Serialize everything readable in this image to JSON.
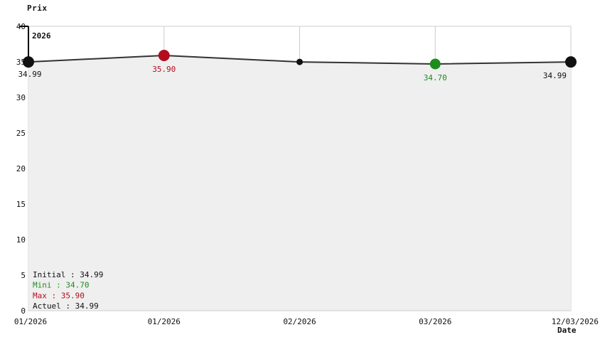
{
  "chart_data": {
    "type": "line",
    "title": "Prix",
    "ylabel": "Prix",
    "xlabel": "Date",
    "year_label": "2026",
    "ylim": [
      0,
      40
    ],
    "y_tick_step": 5,
    "grid": true,
    "line_color": "#333333",
    "fill_color": "#efefef",
    "grid_color": "#cccccc",
    "axis_color": "#000000",
    "text_color": "#111111",
    "x_tick_labels": [
      "01/2026",
      "01/2026",
      "02/2026",
      "03/2026",
      "12/03/2026"
    ],
    "points": [
      {
        "date_label": "01/2026",
        "value": 34.99,
        "label": "34.99",
        "color": "#111111",
        "radius": 8
      },
      {
        "date_label": "01/2026",
        "value": 35.9,
        "label": "35.90",
        "color": "#b30d1d",
        "radius": 8
      },
      {
        "date_label": "02/2026",
        "value": 34.99,
        "label": "",
        "color": "#111111",
        "radius": 4.5
      },
      {
        "date_label": "03/2026",
        "value": 34.7,
        "label": "34.70",
        "color": "#1d8c1d",
        "radius": 7.5
      },
      {
        "date_label": "12/03/2026",
        "value": 34.99,
        "label": "34.99",
        "color": "#111111",
        "radius": 8
      }
    ],
    "legend": [
      {
        "text": "Initial : 34.99",
        "color": "#111111"
      },
      {
        "text": "Mini : 34.70",
        "color": "#1d8c1d"
      },
      {
        "text": "Max : 35.90",
        "color": "#b30d1d"
      },
      {
        "text": "Actuel : 34.99",
        "color": "#111111"
      }
    ],
    "legend_position": "bottom-left-inside"
  }
}
